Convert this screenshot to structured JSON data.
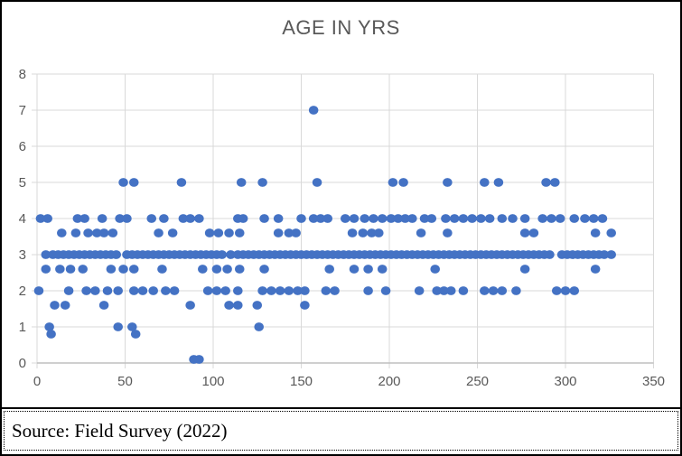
{
  "source": {
    "text": "Source: Field Survey (2022)"
  },
  "colors": {
    "marker": "#4472C4",
    "gridline": "#D9D9D9",
    "axis_line": "#BFBFBF",
    "axis_text": "#595959",
    "title_text": "#595959",
    "frame_border": "#000000"
  },
  "chart_data": {
    "type": "scatter",
    "title": "AGE IN YRS",
    "xlabel": "",
    "ylabel": "",
    "xlim": [
      0,
      350
    ],
    "ylim": [
      0,
      8
    ],
    "xticks": [
      0,
      50,
      100,
      150,
      200,
      250,
      300,
      350
    ],
    "yticks": [
      0,
      1,
      2,
      3,
      4,
      5,
      6,
      7,
      8
    ],
    "grid": true,
    "legend": false,
    "marker_color": "#4472C4",
    "rows": [
      {
        "y": 7,
        "x": [
          157
        ]
      },
      {
        "y": 5,
        "x": [
          49,
          55,
          82,
          116,
          128,
          159,
          202,
          208,
          233,
          254,
          262,
          289,
          294
        ]
      },
      {
        "y": 4,
        "x": [
          2,
          6,
          23,
          27,
          37,
          47,
          51,
          65,
          72,
          83,
          87,
          92,
          114,
          117,
          129,
          137,
          150,
          157,
          161,
          165,
          175,
          180,
          186,
          191,
          196,
          201,
          205,
          209,
          213,
          220,
          224,
          232,
          237,
          242,
          247,
          252,
          257,
          264,
          270,
          277,
          287,
          292,
          297,
          305,
          311,
          316,
          321
        ]
      },
      {
        "y": 3.6,
        "x": [
          14,
          22,
          29,
          34,
          38,
          43,
          69,
          77,
          98,
          103,
          109,
          115,
          137,
          143,
          147,
          179,
          185,
          190,
          194,
          218,
          233,
          277,
          282,
          317,
          326
        ]
      },
      {
        "y": 3,
        "x": [
          5,
          9,
          12,
          15,
          18,
          21,
          24,
          27,
          30,
          33,
          36,
          39,
          42,
          45,
          51,
          54,
          57,
          60,
          63,
          66,
          69,
          72,
          75,
          78,
          81,
          84,
          87,
          90,
          93,
          96,
          99,
          102,
          105,
          110,
          114,
          117,
          120,
          123,
          126,
          129,
          132,
          135,
          138,
          141,
          144,
          147,
          150,
          153,
          156,
          159,
          162,
          165,
          168,
          171,
          174,
          177,
          180,
          183,
          186,
          189,
          192,
          195,
          198,
          201,
          204,
          207,
          210,
          213,
          216,
          219,
          222,
          225,
          228,
          231,
          234,
          237,
          240,
          243,
          246,
          249,
          252,
          255,
          258,
          261,
          264,
          267,
          270,
          273,
          276,
          279,
          282,
          285,
          288,
          291,
          298,
          301,
          304,
          307,
          310,
          313,
          316,
          319,
          322,
          326
        ]
      },
      {
        "y": 2.6,
        "x": [
          5,
          13,
          19,
          26,
          42,
          49,
          55,
          71,
          94,
          102,
          108,
          115,
          129,
          166,
          180,
          188,
          196,
          226,
          277,
          317
        ]
      },
      {
        "y": 2,
        "x": [
          1,
          18,
          28,
          33,
          40,
          46,
          55,
          60,
          66,
          73,
          78,
          97,
          102,
          107,
          114,
          128,
          133,
          138,
          143,
          148,
          152,
          164,
          169,
          188,
          198,
          217,
          227,
          231,
          235,
          242,
          254,
          259,
          264,
          272,
          295,
          300,
          305
        ]
      },
      {
        "y": 1.6,
        "x": [
          10,
          16,
          38,
          87,
          109,
          114,
          125,
          152
        ]
      },
      {
        "y": 1,
        "x": [
          7,
          46,
          54,
          126
        ]
      },
      {
        "y": 0.8,
        "x": [
          8,
          56
        ]
      },
      {
        "y": 0.1,
        "x": [
          89,
          92
        ]
      }
    ]
  }
}
